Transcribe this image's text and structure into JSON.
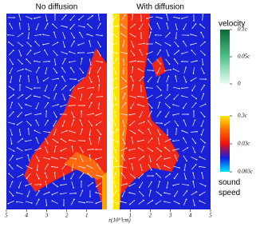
{
  "chart_data": [
    {
      "type": "panel",
      "title": "No diffusion",
      "xlim": [
        5,
        0
      ],
      "xticks": [
        5,
        4,
        3,
        2,
        1
      ]
    },
    {
      "type": "panel",
      "title": "With diffusion",
      "xlim": [
        0,
        5
      ],
      "xticks": [
        1,
        2,
        3,
        4,
        5
      ],
      "xlabel": "r(10¹⁰cm)"
    },
    {
      "type": "colorbar",
      "title": "velocity",
      "ylim": [
        0,
        0.1
      ],
      "yticks": [
        0,
        {
          "value": 0.05,
          "label": "0.05c"
        },
        {
          "value": 0.1,
          "label": "0.1c"
        }
      ],
      "colors": [
        "#e8fff4",
        "#4fc08a",
        "#0b6b35"
      ]
    },
    {
      "type": "colorbar",
      "title": "sound speed",
      "log": true,
      "ylim": [
        0.003,
        0.3
      ],
      "yticks": [
        {
          "value": 0.003,
          "label": "0.003c"
        },
        {
          "value": 0.03,
          "label": "0.03c"
        },
        {
          "value": 0.3,
          "label": "0.3c"
        }
      ],
      "colors": [
        "#00e5ff",
        "#1020e0",
        "#ee1010",
        "#ff6a00",
        "#ffe800"
      ]
    }
  ]
}
